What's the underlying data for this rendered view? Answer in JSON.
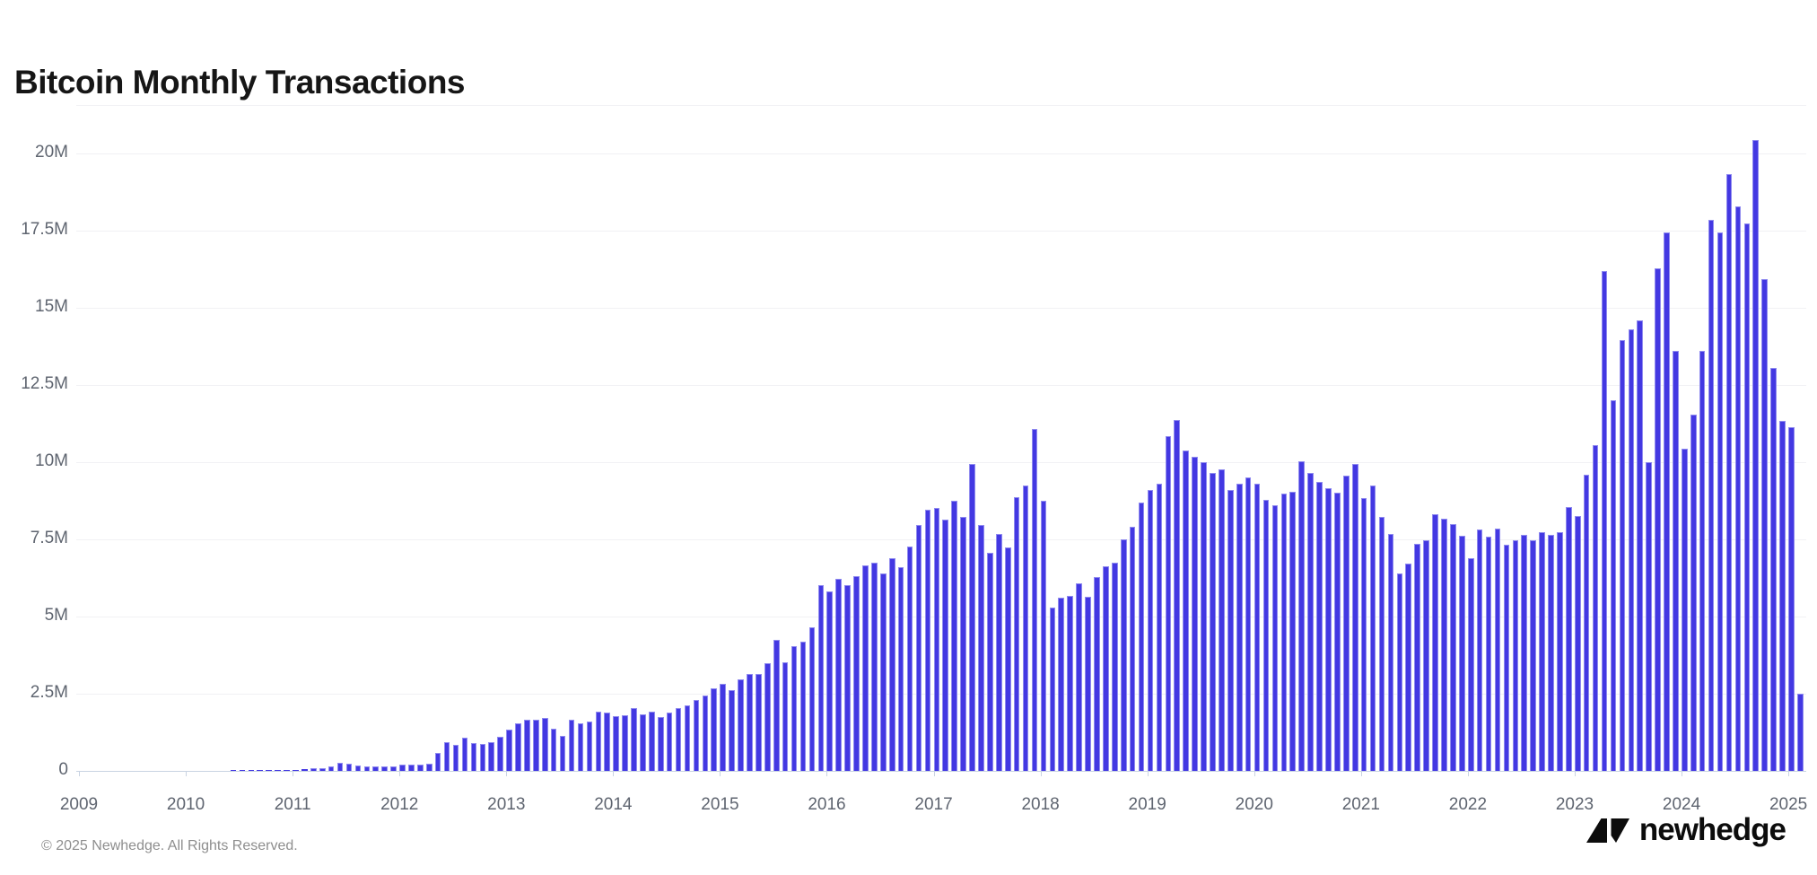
{
  "page": {
    "title": "Bitcoin Monthly Transactions",
    "footer_copyright": "© 2025 Newhedge. All Rights Reserved.",
    "brand": "newhedge"
  },
  "colors": {
    "bar_fill": "#4338e2",
    "bar_edge": "#8f8aef",
    "gridline": "#f1f1f4",
    "axis_line": "#c9d3e2",
    "axis_text": "#5f6570",
    "title_text": "#161616",
    "footer_text": "#8e8e8e",
    "background": "#ffffff"
  },
  "chart_data": {
    "type": "bar",
    "title": "Bitcoin Monthly Transactions",
    "xlabel": "",
    "ylabel": "",
    "unit": "transactions per month, millions",
    "grid": true,
    "legend": false,
    "ylim": [
      0,
      21.55
    ],
    "yticks": [
      {
        "value": 0,
        "label": "0"
      },
      {
        "value": 2.5,
        "label": "2.5M"
      },
      {
        "value": 5,
        "label": "5M"
      },
      {
        "value": 7.5,
        "label": "7.5M"
      },
      {
        "value": 10,
        "label": "10M"
      },
      {
        "value": 12.5,
        "label": "12.5M"
      },
      {
        "value": 15,
        "label": "15M"
      },
      {
        "value": 17.5,
        "label": "17.5M"
      },
      {
        "value": 20,
        "label": "20M"
      }
    ],
    "xticks": [
      "2009",
      "2010",
      "2011",
      "2012",
      "2013",
      "2014",
      "2015",
      "2016",
      "2017",
      "2018",
      "2019",
      "2020",
      "2021",
      "2022",
      "2023",
      "2024",
      "2025"
    ],
    "start_month": "2009-01",
    "end_month": "2025-02",
    "monthly_values": [
      0.01,
      0.01,
      0.01,
      0.01,
      0.01,
      0.01,
      0.01,
      0.01,
      0.01,
      0.01,
      0.01,
      0.01,
      0.02,
      0.02,
      0.02,
      0.02,
      0.02,
      0.03,
      0.03,
      0.03,
      0.03,
      0.03,
      0.03,
      0.03,
      0.04,
      0.05,
      0.08,
      0.09,
      0.14,
      0.27,
      0.23,
      0.17,
      0.16,
      0.16,
      0.16,
      0.15,
      0.19,
      0.2,
      0.21,
      0.22,
      0.58,
      0.92,
      0.83,
      1.08,
      0.9,
      0.88,
      0.92,
      1.1,
      1.35,
      1.54,
      1.66,
      1.66,
      1.72,
      1.38,
      1.14,
      1.66,
      1.53,
      1.59,
      1.92,
      1.88,
      1.76,
      1.81,
      2.05,
      1.84,
      1.92,
      1.75,
      1.89,
      2.05,
      2.13,
      2.31,
      2.45,
      2.68,
      2.83,
      2.63,
      2.98,
      3.15,
      3.15,
      3.48,
      4.25,
      3.51,
      4.05,
      4.18,
      4.64,
      6.03,
      5.83,
      6.21,
      6.03,
      6.32,
      6.65,
      6.74,
      6.39,
      6.88,
      6.59,
      7.28,
      7.98,
      8.46,
      8.52,
      8.15,
      8.76,
      8.23,
      9.94,
      7.97,
      7.08,
      7.67,
      7.23,
      8.88,
      9.24,
      11.07,
      8.76,
      5.29,
      5.61,
      5.66,
      6.07,
      5.63,
      6.27,
      6.62,
      6.75,
      7.49,
      7.92,
      8.7,
      9.1,
      9.32,
      10.86,
      11.38,
      10.38,
      10.19,
      10.0,
      9.66,
      9.76,
      9.1,
      9.32,
      9.51,
      9.32,
      8.79,
      8.6,
      8.98,
      9.05,
      10.02,
      9.66,
      9.37,
      9.15,
      9.03,
      9.58,
      9.94,
      8.85,
      9.24,
      8.23,
      7.67,
      6.4,
      6.71,
      7.37,
      7.48,
      8.32,
      8.18,
      8.01,
      7.63,
      6.89,
      7.81,
      7.6,
      7.85,
      7.33,
      7.48,
      7.64,
      7.48,
      7.75,
      7.64,
      7.75,
      8.54,
      8.25,
      9.6,
      10.55,
      16.2,
      12.0,
      13.95,
      14.3,
      14.6,
      10.0,
      16.3,
      17.45,
      13.6,
      10.45,
      11.55,
      13.6,
      17.85,
      17.45,
      19.35,
      18.3,
      17.75,
      20.45,
      15.95,
      13.05,
      11.35,
      11.15,
      2.5
    ]
  }
}
